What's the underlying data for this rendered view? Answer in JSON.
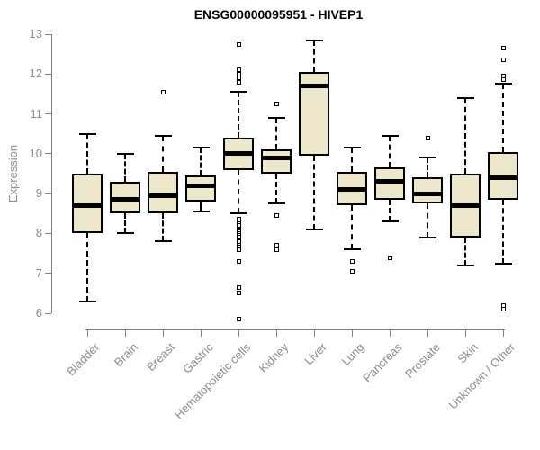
{
  "title": "ENSG00000095951 - HIVEP1",
  "y_axis_label": "Expression",
  "colors": {
    "box_fill": "#EDE8CC",
    "box_border": "#000000",
    "median": "#000000",
    "axis": "#808080",
    "axis_text": "#8C8C8C",
    "title_text": "#000000"
  },
  "chart_data": {
    "type": "boxplot",
    "title": "ENSG00000095951 - HIVEP1",
    "xlabel": "",
    "ylabel": "Expression",
    "ylim": [
      6,
      13
    ],
    "yticks": [
      6,
      7,
      8,
      9,
      10,
      11,
      12,
      13
    ],
    "grid": false,
    "legend": false,
    "categories": [
      "Bladder",
      "Brain",
      "Breast",
      "Gastric",
      "Hematopoietic cells",
      "Kidney",
      "Liver",
      "Lung",
      "Pancreas",
      "Prostate",
      "Skin",
      "Unknown / Other"
    ],
    "series": [
      {
        "category": "Bladder",
        "whisker_low": 6.3,
        "q1": 8.0,
        "median": 8.7,
        "q3": 9.5,
        "whisker_high": 10.5,
        "outliers": []
      },
      {
        "category": "Brain",
        "whisker_low": 8.0,
        "q1": 8.5,
        "median": 8.85,
        "q3": 9.3,
        "whisker_high": 10.0,
        "outliers": []
      },
      {
        "category": "Breast",
        "whisker_low": 7.8,
        "q1": 8.5,
        "median": 8.95,
        "q3": 9.55,
        "whisker_high": 10.45,
        "outliers": [
          11.55
        ]
      },
      {
        "category": "Gastric",
        "whisker_low": 8.55,
        "q1": 8.8,
        "median": 9.2,
        "q3": 9.45,
        "whisker_high": 10.15,
        "outliers": []
      },
      {
        "category": "Hematopoietic cells",
        "whisker_low": 8.5,
        "q1": 9.6,
        "median": 10.0,
        "q3": 10.4,
        "whisker_high": 11.55,
        "outliers": [
          12.75,
          12.1,
          12.0,
          11.9,
          11.8,
          8.35,
          8.3,
          8.25,
          8.2,
          8.1,
          8.05,
          8.0,
          7.95,
          7.9,
          7.8,
          7.7,
          7.65,
          7.6,
          7.3,
          6.65,
          6.5,
          5.85
        ]
      },
      {
        "category": "Kidney",
        "whisker_low": 8.75,
        "q1": 9.5,
        "median": 9.9,
        "q3": 10.1,
        "whisker_high": 10.9,
        "outliers": [
          11.25,
          8.45,
          7.7,
          7.6
        ]
      },
      {
        "category": "Liver",
        "whisker_low": 8.1,
        "q1": 9.95,
        "median": 11.7,
        "q3": 12.05,
        "whisker_high": 12.85,
        "outliers": []
      },
      {
        "category": "Lung",
        "whisker_low": 7.6,
        "q1": 8.7,
        "median": 9.1,
        "q3": 9.55,
        "whisker_high": 10.15,
        "outliers": [
          7.3,
          7.05
        ]
      },
      {
        "category": "Pancreas",
        "whisker_low": 8.3,
        "q1": 8.85,
        "median": 9.3,
        "q3": 9.65,
        "whisker_high": 10.45,
        "outliers": [
          7.4
        ]
      },
      {
        "category": "Prostate",
        "whisker_low": 7.9,
        "q1": 8.75,
        "median": 9.0,
        "q3": 9.4,
        "whisker_high": 9.9,
        "outliers": [
          10.4
        ]
      },
      {
        "category": "Skin",
        "whisker_low": 7.2,
        "q1": 7.9,
        "median": 8.7,
        "q3": 9.5,
        "whisker_high": 11.4,
        "outliers": []
      },
      {
        "category": "Unknown / Other",
        "whisker_low": 7.25,
        "q1": 8.85,
        "median": 9.4,
        "q3": 10.05,
        "whisker_high": 11.75,
        "outliers": [
          12.65,
          12.35,
          11.95,
          11.85,
          6.2,
          6.1
        ]
      }
    ]
  }
}
